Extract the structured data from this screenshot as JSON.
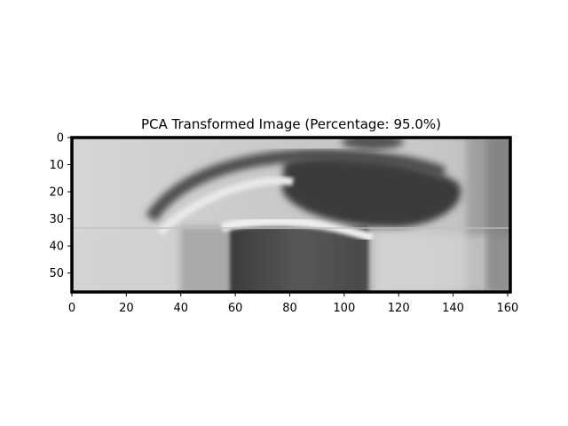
{
  "figure": {
    "title": "PCA Transformed Image (Percentage: 95.0%)"
  },
  "axes": {
    "x_ticks": [
      0,
      20,
      40,
      60,
      80,
      100,
      120,
      140,
      160
    ],
    "y_ticks": [
      0,
      10,
      20,
      30,
      40,
      50
    ],
    "x_range": [
      0,
      161
    ],
    "y_range": [
      0,
      57
    ],
    "y_inverted": true
  },
  "image": {
    "colormap": "gray",
    "background_color": "#ffffff",
    "content": "grayscale close-up image"
  }
}
